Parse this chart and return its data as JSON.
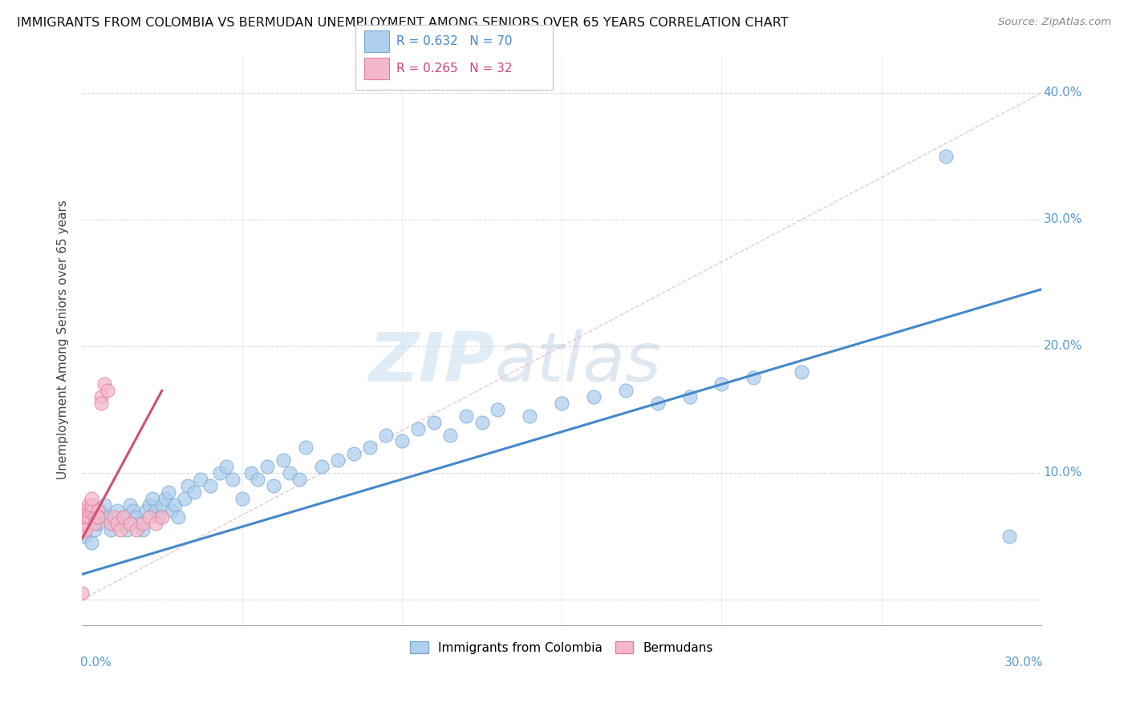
{
  "title": "IMMIGRANTS FROM COLOMBIA VS BERMUDAN UNEMPLOYMENT AMONG SENIORS OVER 65 YEARS CORRELATION CHART",
  "source": "Source: ZipAtlas.com",
  "ylabel": "Unemployment Among Seniors over 65 years",
  "xlim": [
    0.0,
    0.3
  ],
  "ylim": [
    -0.02,
    0.43
  ],
  "yticks": [
    0.0,
    0.1,
    0.2,
    0.3,
    0.4
  ],
  "ytick_labels": [
    "",
    "10.0%",
    "20.0%",
    "30.0%",
    "40.0%"
  ],
  "legend_r1": "R = 0.632",
  "legend_n1": "N = 70",
  "legend_r2": "R = 0.265",
  "legend_n2": "N = 32",
  "blue_color": "#aecfee",
  "blue_edge": "#7aaad0",
  "pink_color": "#f5b8ca",
  "pink_edge": "#e080a0",
  "line_blue": "#4488cc",
  "line_pink": "#d05070",
  "watermark_zip": "ZIP",
  "watermark_atlas": "atlas",
  "blue_scatter_x": [
    0.001,
    0.002,
    0.003,
    0.004,
    0.005,
    0.006,
    0.007,
    0.008,
    0.009,
    0.01,
    0.011,
    0.012,
    0.013,
    0.014,
    0.015,
    0.016,
    0.017,
    0.018,
    0.019,
    0.02,
    0.021,
    0.022,
    0.023,
    0.024,
    0.025,
    0.026,
    0.027,
    0.028,
    0.029,
    0.03,
    0.032,
    0.033,
    0.035,
    0.037,
    0.04,
    0.043,
    0.045,
    0.047,
    0.05,
    0.053,
    0.055,
    0.058,
    0.06,
    0.063,
    0.065,
    0.068,
    0.07,
    0.075,
    0.08,
    0.085,
    0.09,
    0.095,
    0.1,
    0.105,
    0.11,
    0.115,
    0.12,
    0.125,
    0.13,
    0.14,
    0.15,
    0.16,
    0.17,
    0.18,
    0.19,
    0.2,
    0.21,
    0.225,
    0.27,
    0.29
  ],
  "blue_scatter_y": [
    0.05,
    0.065,
    0.045,
    0.055,
    0.06,
    0.07,
    0.075,
    0.065,
    0.055,
    0.06,
    0.07,
    0.06,
    0.065,
    0.055,
    0.075,
    0.07,
    0.065,
    0.06,
    0.055,
    0.07,
    0.075,
    0.08,
    0.07,
    0.065,
    0.075,
    0.08,
    0.085,
    0.07,
    0.075,
    0.065,
    0.08,
    0.09,
    0.085,
    0.095,
    0.09,
    0.1,
    0.105,
    0.095,
    0.08,
    0.1,
    0.095,
    0.105,
    0.09,
    0.11,
    0.1,
    0.095,
    0.12,
    0.105,
    0.11,
    0.115,
    0.12,
    0.13,
    0.125,
    0.135,
    0.14,
    0.13,
    0.145,
    0.14,
    0.15,
    0.145,
    0.155,
    0.16,
    0.165,
    0.155,
    0.16,
    0.17,
    0.175,
    0.18,
    0.35,
    0.05
  ],
  "pink_scatter_x": [
    0.0,
    0.0,
    0.001,
    0.001,
    0.001,
    0.001,
    0.002,
    0.002,
    0.002,
    0.003,
    0.003,
    0.003,
    0.004,
    0.004,
    0.005,
    0.005,
    0.006,
    0.006,
    0.007,
    0.008,
    0.009,
    0.01,
    0.011,
    0.012,
    0.013,
    0.015,
    0.017,
    0.019,
    0.021,
    0.023,
    0.025,
    0.0
  ],
  "pink_scatter_y": [
    0.055,
    0.06,
    0.065,
    0.07,
    0.06,
    0.055,
    0.065,
    0.07,
    0.075,
    0.07,
    0.075,
    0.08,
    0.065,
    0.06,
    0.07,
    0.065,
    0.16,
    0.155,
    0.17,
    0.165,
    0.06,
    0.065,
    0.06,
    0.055,
    0.065,
    0.06,
    0.055,
    0.06,
    0.065,
    0.06,
    0.065,
    0.005
  ],
  "blue_line_x": [
    0.0,
    0.3
  ],
  "blue_line_y": [
    0.02,
    0.245
  ],
  "pink_line_x": [
    0.0,
    0.025
  ],
  "pink_line_y": [
    0.048,
    0.165
  ],
  "ref_line_x": [
    0.0,
    0.3
  ],
  "ref_line_y": [
    0.0,
    0.4
  ]
}
